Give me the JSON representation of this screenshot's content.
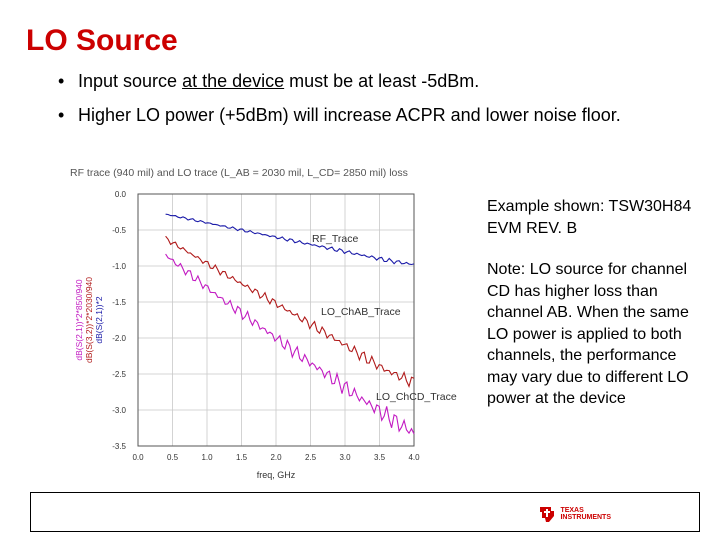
{
  "slide": {
    "title": "LO Source",
    "bullets": [
      {
        "pre": "Input source ",
        "underlined": "at the device",
        "post": " must be at least -5dBm."
      },
      {
        "text": "Higher LO power (+5dBm) will increase ACPR and lower noise floor."
      }
    ],
    "side_notes": [
      "Example shown: TSW30H84 EVM REV. B",
      "Note: LO source for channel CD has higher loss than channel AB. When the same LO power is applied to both channels, the performance may vary due to different LO power at the device"
    ],
    "logo_line1": "TEXAS",
    "logo_line2": "INSTRUMENTS"
  },
  "chart_data": {
    "type": "line",
    "title": "RF trace (940 mil) and LO trace (L_AB = 2030 mil, L_CD= 2850 mil) loss",
    "xlabel": "freq, GHz",
    "ylabels": [
      "dB(S(2,1))*2*850/940",
      "dB(S(3,2))*2*2030/940",
      "dB(S(2,1))*2"
    ],
    "xlim": [
      0.0,
      4.0
    ],
    "ylim": [
      -3.5,
      0.0
    ],
    "x_ticks": [
      "0.0",
      "0.5",
      "1.0",
      "1.5",
      "2.0",
      "2.5",
      "3.0",
      "3.5",
      "4.0"
    ],
    "y_ticks": [
      "0.0",
      "-0.5",
      "-1.0",
      "-1.5",
      "-2.0",
      "-2.5",
      "-3.0",
      "-3.5"
    ],
    "grid": true,
    "series": [
      {
        "name": "RF_Trace",
        "color": "#1a1aa8",
        "x": [
          0.4,
          0.8,
          1.2,
          1.6,
          2.0,
          2.4,
          2.8,
          3.2,
          3.6,
          4.0
        ],
        "y": [
          -0.28,
          -0.36,
          -0.44,
          -0.52,
          -0.6,
          -0.68,
          -0.76,
          -0.84,
          -0.92,
          -0.98
        ]
      },
      {
        "name": "LO_ChAB_Trace",
        "color": "#b01a1a",
        "x": [
          0.4,
          0.8,
          1.2,
          1.6,
          2.0,
          2.4,
          2.8,
          3.2,
          3.6,
          4.0
        ],
        "y": [
          -0.62,
          -0.85,
          -1.08,
          -1.3,
          -1.52,
          -1.75,
          -1.98,
          -2.22,
          -2.45,
          -2.62
        ]
      },
      {
        "name": "LO_ChCD_Trace",
        "color": "#c21ac2",
        "x": [
          0.4,
          0.8,
          1.2,
          1.6,
          2.0,
          2.4,
          2.8,
          3.2,
          3.6,
          4.0
        ],
        "y": [
          -0.85,
          -1.15,
          -1.45,
          -1.72,
          -2.0,
          -2.28,
          -2.55,
          -2.82,
          -3.08,
          -3.32
        ]
      }
    ]
  }
}
